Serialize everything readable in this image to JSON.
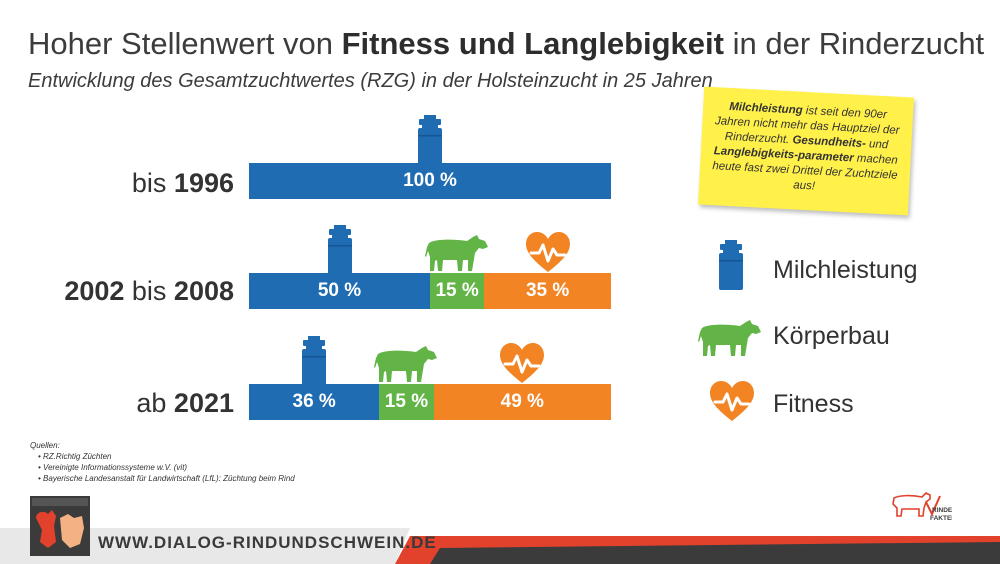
{
  "title": {
    "prefix": "Hoher Stellenwert von ",
    "bold": "Fitness und Langlebigkeit",
    "suffix": " in der Rinderzucht"
  },
  "subtitle": "Entwicklung des Gesamtzuchtwertes (RZG) in der Holsteinzucht in 25 Jahren",
  "chart_data": {
    "type": "bar",
    "orientation": "horizontal-stacked-100",
    "categories": [
      "bis 1996",
      "2002 bis 2008",
      "ab 2021"
    ],
    "series": [
      {
        "name": "Milchleistung",
        "values": [
          100,
          50,
          36
        ],
        "color": "#1f6cb3",
        "icon": "milk-can-icon"
      },
      {
        "name": "Körperbau",
        "values": [
          0,
          15,
          15
        ],
        "color": "#63b446",
        "icon": "cow-icon"
      },
      {
        "name": "Fitness",
        "values": [
          0,
          35,
          49
        ],
        "color": "#f28424",
        "icon": "heart-pulse-icon"
      }
    ],
    "data_labels": [
      [
        "100 %"
      ],
      [
        "50 %",
        "15 %",
        "35 %"
      ],
      [
        "36 %",
        "15 %",
        "49 %"
      ]
    ]
  },
  "rows": [
    {
      "plain_pre": "bis ",
      "bold1": "1996",
      "plain_mid": "",
      "bold2": ""
    },
    {
      "plain_pre": "",
      "bold1": "2002",
      "plain_mid": " bis ",
      "bold2": "2008"
    },
    {
      "plain_pre": "ab ",
      "bold1": "2021",
      "plain_mid": "",
      "bold2": ""
    }
  ],
  "note": {
    "b1": "Milchleistung",
    "t1": " ist seit den 90er Jahren nicht mehr das Hauptziel der Rinderzucht. ",
    "b2": "Gesundheits-",
    "t2": " und ",
    "b3": "Langlebigkeits-parameter",
    "t3": " machen heute fast zwei Drittel der Zuchtziele aus!"
  },
  "legend": [
    {
      "label": "Milchleistung",
      "icon": "milk-can-icon"
    },
    {
      "label": "Körperbau",
      "icon": "cow-icon"
    },
    {
      "label": "Fitness",
      "icon": "heart-pulse-icon"
    }
  ],
  "sources": {
    "heading": "Quellen:",
    "items": [
      "RZ.Richtig Züchten",
      "Vereinigte Informationssysteme w.V. (vit)",
      "Bayerische Landesanstalt für Landwirtschaft (LfL): Züchtung beim Rind"
    ]
  },
  "footer": {
    "url": "WWW.DIALOG-RINDUNDSCHWEIN.DE",
    "left_logo": "bundesverband-rind-und-schwein-logo",
    "right_logo": "rinder-fakten-logo",
    "right_logo_text": "RINDER FAKTEN"
  },
  "colors": {
    "milk": "#1f6cb3",
    "body": "#63b446",
    "fitness": "#f28424",
    "note": "#fff04a",
    "footer_red": "#e2412c",
    "footer_dark": "#3b3b3b"
  }
}
